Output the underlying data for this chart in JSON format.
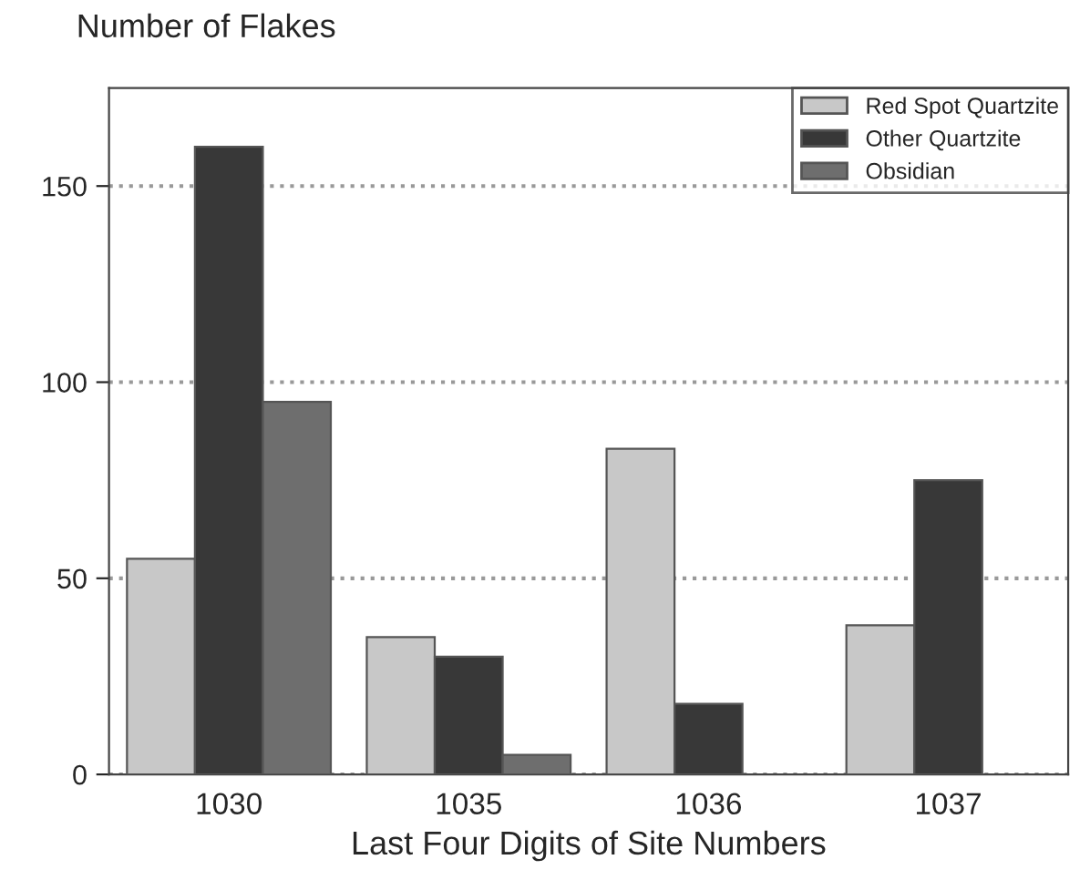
{
  "chart_data": {
    "type": "bar",
    "title": "Number of Flakes",
    "xlabel": "Last Four Digits of Site Numbers",
    "categories": [
      "1030",
      "1035",
      "1036",
      "1037"
    ],
    "series": [
      {
        "name": "Red Spot Quartzite",
        "color": "#c8c8c8",
        "values": [
          55,
          35,
          83,
          38
        ]
      },
      {
        "name": "Other Quartzite",
        "color": "#383838",
        "values": [
          160,
          30,
          18,
          75
        ]
      },
      {
        "name": "Obsidian",
        "color": "#6e6e6e",
        "values": [
          95,
          5,
          null,
          null
        ]
      }
    ],
    "ylim": [
      0,
      175
    ],
    "yticks": [
      0,
      50,
      100,
      150
    ],
    "grid": "y",
    "legend": "top right"
  }
}
